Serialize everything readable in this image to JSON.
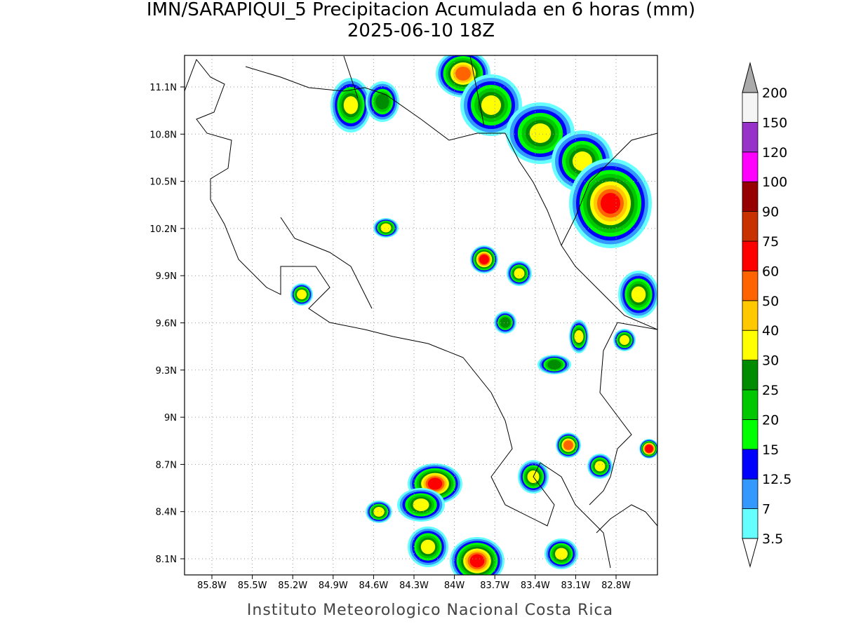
{
  "title": "IMN/SARAPIQUI_5 Precipitacion Acumulada en 6 horas (mm)",
  "subtitle": "2025-06-10 18Z",
  "map": {
    "lon_labels": [
      "85.8W",
      "85.5W",
      "85.2W",
      "84.9W",
      "84.6W",
      "84.3W",
      "84W",
      "83.7W",
      "83.4W",
      "83.1W",
      "82.8W"
    ],
    "lat_labels": [
      "8.1N",
      "8.4N",
      "8.7N",
      "9N",
      "9.3N",
      "9.6N",
      "9.9N",
      "10.2N",
      "10.5N",
      "10.8N",
      "11.1N"
    ]
  },
  "colorbar": {
    "levels": [
      "3.5",
      "7",
      "12.5",
      "15",
      "20",
      "25",
      "30",
      "40",
      "50",
      "60",
      "75",
      "90",
      "100",
      "120",
      "150",
      "200"
    ],
    "colors": [
      "#66ffff",
      "#3399ff",
      "#0000ff",
      "#00ff00",
      "#00c800",
      "#008c00",
      "#ffff00",
      "#ffc800",
      "#ff6400",
      "#ff0000",
      "#c83200",
      "#960000",
      "#ff00ff",
      "#9632c8",
      "#f5f5f5"
    ],
    "over_color": "#aaaaaa",
    "under_color": "#ffffff"
  },
  "footer": "Instituto Meteorologico Nacional Costa Rica"
}
